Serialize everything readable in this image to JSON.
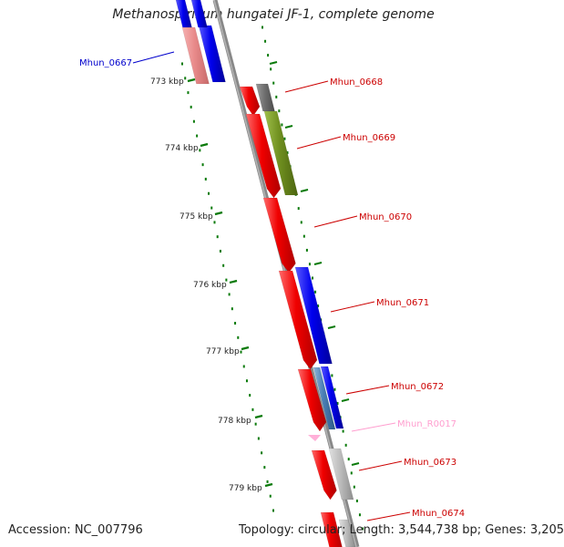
{
  "title": "Methanospirillum hungatei JF-1, complete genome",
  "footer": {
    "accession": "Accession: NC_007796",
    "summary": "Topology: circular; Length: 3,544,738 bp; Genes: 3,205"
  },
  "colors": {
    "cds_forward": "#ff0000",
    "cds_reverse": "#0000ff",
    "rrna": "#ffb0d8",
    "backbone": "#888888",
    "ticks": "#0a7a0a",
    "other_a": "#707070",
    "other_b": "#6f8f1f",
    "other_c": "#4a7fb5",
    "other_d": "#b8b8b8",
    "pink_block": "#e98b8b"
  },
  "scale": {
    "ticks": [
      {
        "label": "773 kbp"
      },
      {
        "label": "774 kbp"
      },
      {
        "label": "775 kbp"
      },
      {
        "label": "776 kbp"
      },
      {
        "label": "777 kbp"
      },
      {
        "label": "778 kbp"
      },
      {
        "label": "779 kbp"
      }
    ]
  },
  "genes": [
    {
      "label": "Mhun_0667",
      "color": "#0000cc"
    },
    {
      "label": "Mhun_0668",
      "color": "#cc0000"
    },
    {
      "label": "Mhun_0669",
      "color": "#cc0000"
    },
    {
      "label": "Mhun_0670",
      "color": "#cc0000"
    },
    {
      "label": "Mhun_0671",
      "color": "#cc0000"
    },
    {
      "label": "Mhun_0672",
      "color": "#cc0000"
    },
    {
      "label": "Mhun_R0017",
      "color": "#ff9ecf"
    },
    {
      "label": "Mhun_0673",
      "color": "#cc0000"
    },
    {
      "label": "Mhun_0674",
      "color": "#cc0000"
    }
  ]
}
